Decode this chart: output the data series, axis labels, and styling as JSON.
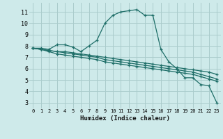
{
  "title": "",
  "xlabel": "Humidex (Indice chaleur)",
  "background_color": "#ceeaea",
  "grid_color": "#aacccc",
  "line_color": "#1e6e68",
  "xlim": [
    -0.5,
    23.5
  ],
  "ylim": [
    2.5,
    11.8
  ],
  "xticks": [
    0,
    1,
    2,
    3,
    4,
    5,
    6,
    7,
    8,
    9,
    10,
    11,
    12,
    13,
    14,
    15,
    16,
    17,
    18,
    19,
    20,
    21,
    22,
    23
  ],
  "yticks": [
    3,
    4,
    5,
    6,
    7,
    8,
    9,
    10,
    11
  ],
  "series": [
    [
      7.8,
      7.8,
      7.7,
      8.1,
      8.1,
      7.9,
      7.5,
      8.0,
      8.5,
      10.0,
      10.7,
      11.0,
      11.1,
      11.2,
      10.7,
      10.7,
      7.7,
      6.6,
      6.0,
      5.2,
      5.2,
      4.6,
      4.5,
      3.0
    ],
    [
      7.8,
      7.7,
      7.6,
      7.5,
      7.5,
      7.4,
      7.3,
      7.2,
      7.1,
      7.0,
      6.9,
      6.8,
      6.7,
      6.6,
      6.5,
      6.4,
      6.3,
      6.2,
      6.1,
      6.0,
      5.9,
      5.8,
      5.7,
      5.5
    ],
    [
      7.8,
      7.7,
      7.6,
      7.5,
      7.4,
      7.3,
      7.2,
      7.1,
      7.0,
      6.8,
      6.7,
      6.6,
      6.5,
      6.4,
      6.3,
      6.2,
      6.1,
      6.0,
      5.9,
      5.8,
      5.7,
      5.5,
      5.3,
      5.1
    ],
    [
      7.8,
      7.7,
      7.5,
      7.3,
      7.2,
      7.1,
      7.0,
      6.9,
      6.8,
      6.6,
      6.5,
      6.4,
      6.3,
      6.2,
      6.1,
      6.0,
      5.9,
      5.8,
      5.7,
      5.6,
      5.5,
      5.3,
      5.1,
      4.9
    ]
  ]
}
